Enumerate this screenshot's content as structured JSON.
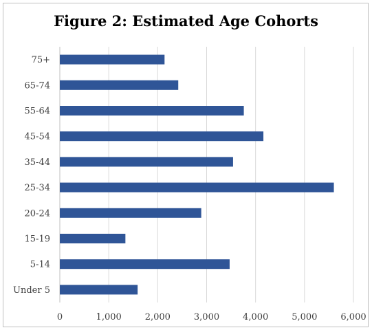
{
  "chart_data": {
    "type": "bar",
    "orientation": "horizontal",
    "title": "Figure 2: Estimated Age Cohorts",
    "categories": [
      "Under 5",
      "5-14",
      "15-19",
      "20-24",
      "25-34",
      "35-44",
      "45-54",
      "55-64",
      "65-74",
      "75+"
    ],
    "values": [
      1590,
      3470,
      1340,
      2890,
      5600,
      3540,
      4160,
      3760,
      2420,
      2140
    ],
    "xlim": [
      0,
      6000
    ],
    "x_ticks": [
      0,
      1000,
      2000,
      3000,
      4000,
      5000,
      6000
    ],
    "x_tick_labels": [
      "0",
      "1,000",
      "2,000",
      "3,000",
      "4,000",
      "5,000",
      "6,000"
    ],
    "grid": "vertical",
    "legend": "none",
    "bar_color": "#2f5597",
    "grid_color": "#d9d9d9"
  }
}
